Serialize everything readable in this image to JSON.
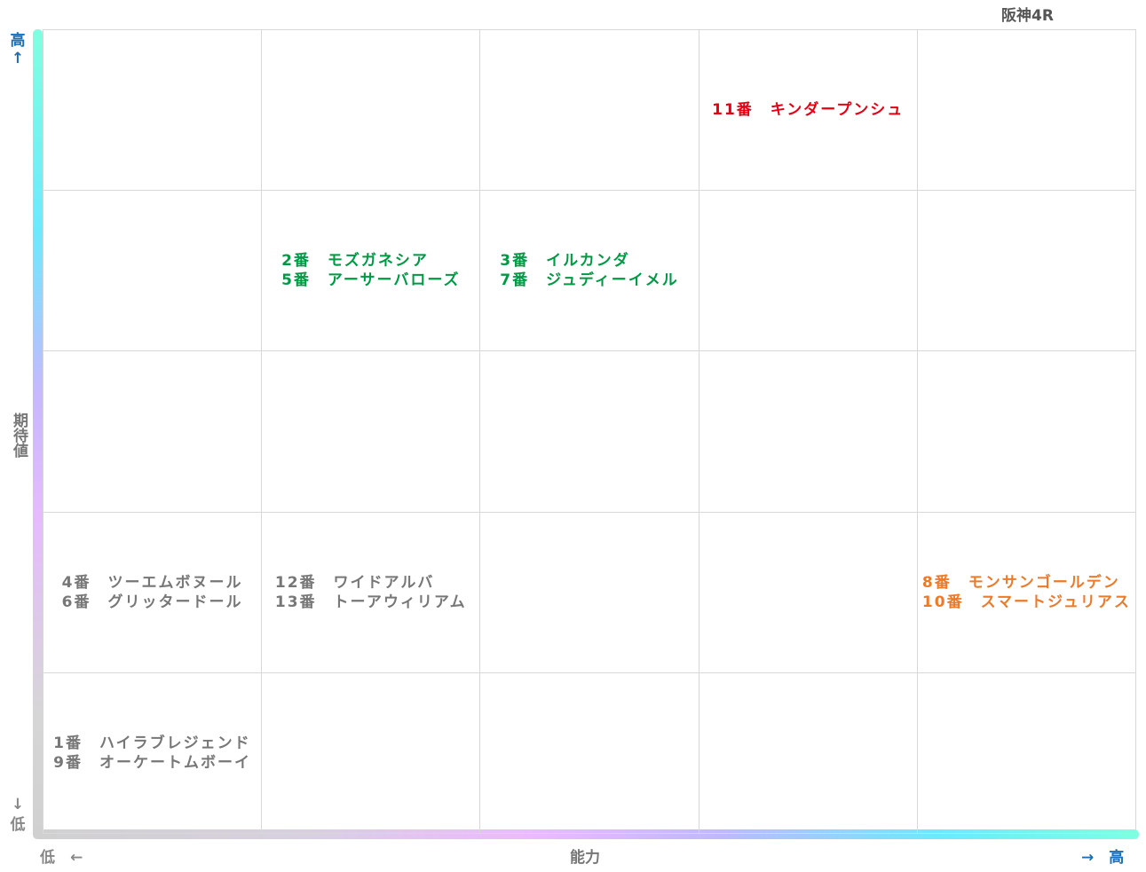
{
  "title": "阪神4R",
  "y_axis": {
    "high": "高",
    "high_arrow": "↑",
    "label": "期待値",
    "low_arrow": "↓",
    "low": "低"
  },
  "x_axis": {
    "low": "低　←",
    "label": "能力",
    "high": "→　高"
  },
  "grid": [
    [
      [],
      [],
      [],
      [
        {
          "text": "11番　キンダープンシュ",
          "color": "#e60012"
        }
      ],
      []
    ],
    [
      [],
      [
        {
          "text": "2番　モズガネシア",
          "color": "#009944"
        },
        {
          "text": "5番　アーサーバローズ",
          "color": "#009944"
        }
      ],
      [
        {
          "text": "3番　イルカンダ",
          "color": "#009944"
        },
        {
          "text": "7番　ジュディーイメル",
          "color": "#009944"
        }
      ],
      [],
      []
    ],
    [
      [],
      [],
      [],
      [],
      []
    ],
    [
      [
        {
          "text": "4番　ツーエムボヌール",
          "color": "#777777"
        },
        {
          "text": "6番　グリッタードール",
          "color": "#777777"
        }
      ],
      [
        {
          "text": "12番　ワイドアルバ",
          "color": "#777777"
        },
        {
          "text": "13番　トーアウィリアム",
          "color": "#777777"
        }
      ],
      [],
      [],
      [
        {
          "text": "8番　モンサンゴールデン",
          "color": "#ec7a28"
        },
        {
          "text": "10番　スマートジュリアス",
          "color": "#ec7a28"
        }
      ]
    ],
    [
      [
        {
          "text": "1番　ハイラブレジェンド",
          "color": "#777777"
        },
        {
          "text": "9番　オーケートムボーイ",
          "color": "#777777"
        }
      ],
      [],
      [],
      [],
      []
    ]
  ]
}
